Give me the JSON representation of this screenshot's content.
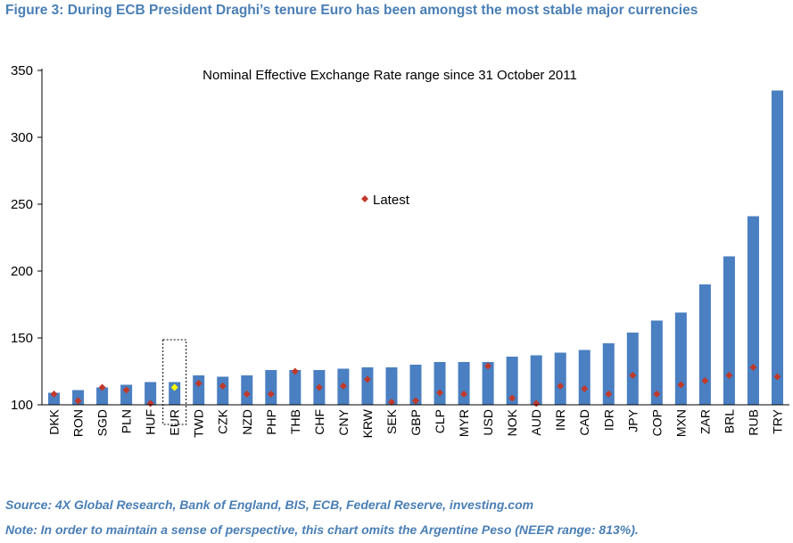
{
  "figure_title": "Figure 3: During ECB President Draghi’s tenure Euro has been amongst the most stable major currencies",
  "source": "Source: 4X Global Research, Bank of England, BIS, ECB, Federal Reserve, investing.com",
  "note": "Note: In order to maintain a sense of perspective, this chart omits the Argentine Peso (NEER range: 813%).",
  "colors": {
    "title": "#4a7fb5",
    "bar": "#4a7fc1",
    "latest_marker": "#c0392b",
    "eur_latest_marker": "#ffff00",
    "axis": "#000000"
  },
  "chart_data": {
    "type": "bar",
    "title": "Nominal Effective Exchange Rate range  since 31 October 2011",
    "xlabel": "",
    "ylabel": "",
    "ylim": [
      100,
      350
    ],
    "yticks": [
      100,
      150,
      200,
      250,
      300,
      350
    ],
    "grid": false,
    "legend": {
      "entries": [
        "Latest"
      ],
      "placement": "center"
    },
    "highlighted_category": "EUR",
    "categories": [
      "DKK",
      "RON",
      "SGD",
      "PLN",
      "HUF",
      "EUR",
      "TWD",
      "CZK",
      "NZD",
      "PHP",
      "THB",
      "CHF",
      "CNY",
      "KRW",
      "SEK",
      "GBP",
      "CLP",
      "MYR",
      "USD",
      "NOK",
      "AUD",
      "INR",
      "CAD",
      "IDR",
      "JPY",
      "COP",
      "MXN",
      "ZAR",
      "BRL",
      "RUB",
      "TRY"
    ],
    "series": [
      {
        "name": "",
        "type": "bar",
        "values": [
          109,
          111,
          113,
          115,
          117,
          117,
          122,
          121,
          122,
          126,
          126,
          126,
          127,
          128,
          128,
          130,
          132,
          132,
          132,
          136,
          137,
          139,
          141,
          146,
          154,
          163,
          169,
          190,
          211,
          241,
          335
        ]
      },
      {
        "name": "Latest",
        "type": "marker",
        "values": [
          108,
          103,
          113,
          111,
          101,
          113,
          116,
          114,
          108,
          108,
          125,
          113,
          114,
          119,
          102,
          103,
          109,
          108,
          129,
          105,
          101,
          114,
          112,
          108,
          122,
          108,
          115,
          118,
          122,
          128,
          121
        ]
      }
    ]
  }
}
